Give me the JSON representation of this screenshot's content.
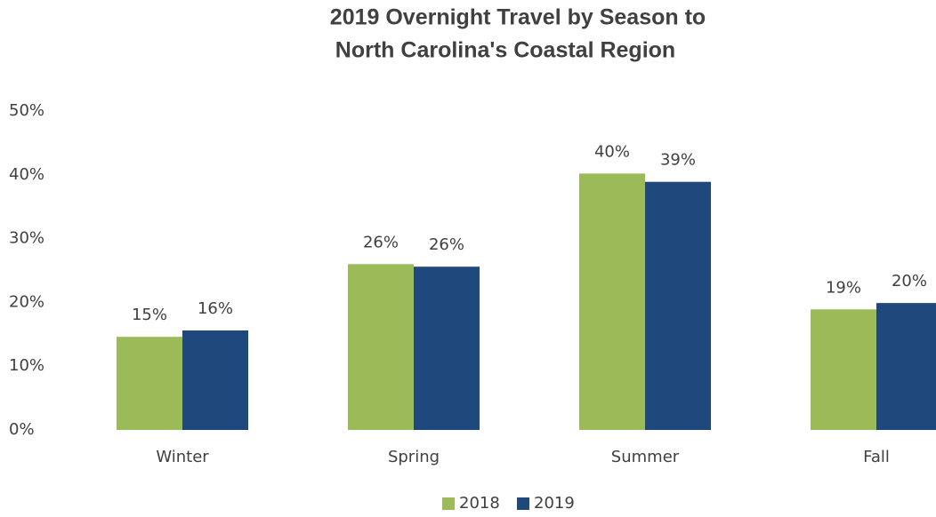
{
  "chart_data": {
    "type": "bar",
    "title": [
      "2019 Overnight Travel by Season to",
      "North Carolina's Coastal Region"
    ],
    "categories": [
      "Winter",
      "Spring",
      "Summer",
      "Fall"
    ],
    "series": [
      {
        "name": "2018",
        "color": "#9bbb59",
        "values": [
          14.6,
          26.0,
          40.2,
          18.9
        ],
        "value_labels": [
          "15%",
          "26%",
          "40%",
          "19%"
        ]
      },
      {
        "name": "2019",
        "color": "#1f497d",
        "values": [
          15.6,
          25.6,
          38.9,
          19.9
        ],
        "value_labels": [
          "16%",
          "26%",
          "39%",
          "20%"
        ]
      }
    ],
    "ylim": [
      0,
      50
    ],
    "yticks": [
      {
        "value": 0,
        "label": "0%"
      },
      {
        "value": 10,
        "label": "10%"
      },
      {
        "value": 20,
        "label": "20%"
      },
      {
        "value": 30,
        "label": "30%"
      },
      {
        "value": 40,
        "label": "40%"
      },
      {
        "value": 50,
        "label": "50%"
      }
    ],
    "grid": false,
    "legend": "bottom"
  }
}
